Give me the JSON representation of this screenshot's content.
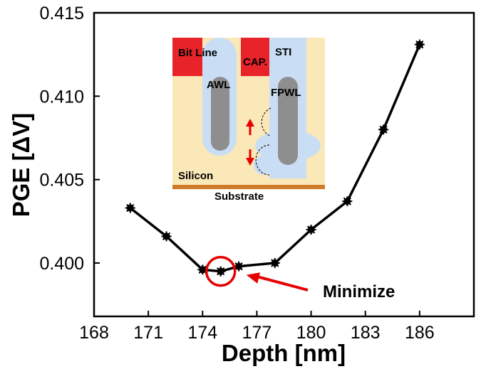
{
  "chart_data": {
    "type": "line",
    "xlabel": "Depth [nm]",
    "ylabel": "PGE [ΔV]",
    "xlim": [
      168,
      189
    ],
    "ylim": [
      0.3968,
      0.415
    ],
    "xticks": [
      168,
      171,
      174,
      177,
      180,
      183,
      186
    ],
    "yticks": [
      0.4,
      0.405,
      0.41,
      0.415
    ],
    "ytick_labels": [
      "0.400",
      "0.405",
      "0.410",
      "0.415"
    ],
    "grid": false,
    "series": [
      {
        "color": "#000000",
        "marker": "star",
        "x": [
          170,
          172,
          174,
          175,
          176,
          178,
          180,
          182,
          184,
          186
        ],
        "y": [
          0.4033,
          0.4016,
          0.3996,
          0.3995,
          0.3998,
          0.4,
          0.402,
          0.4037,
          0.408,
          0.4131
        ]
      }
    ],
    "annotations": [
      {
        "text": "Minimize",
        "target_x": 175,
        "target_y": 0.3995,
        "color": "#e60000"
      }
    ],
    "inset": {
      "labels": {
        "bit_line": "Bit Line",
        "cap": "CAP.",
        "sti": "STI",
        "awl": "AWL",
        "fpwl": "FPWL",
        "silicon": "Silicon",
        "substrate": "Substrate"
      },
      "colors": {
        "silicon": "#fbe8b8",
        "oxide": "#c9def5",
        "gate": "#8e8e8e",
        "red": "#e8232a",
        "substrate": "#d07a28",
        "arrow": "#e60000"
      }
    }
  }
}
